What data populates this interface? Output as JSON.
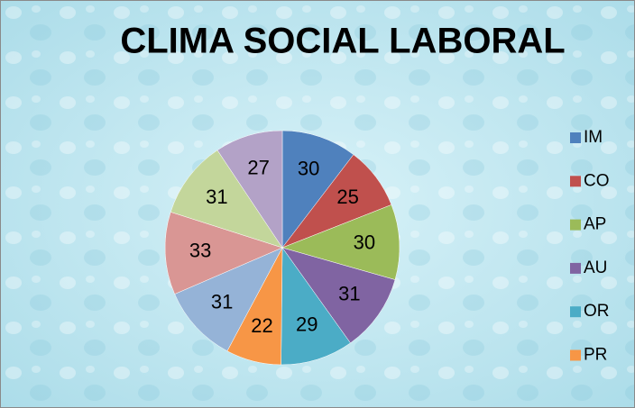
{
  "chart_data": {
    "type": "pie",
    "title": "CLIMA SOCIAL LABORAL",
    "categories": [
      "IM",
      "CO",
      "AP",
      "AU",
      "OR",
      "PR",
      null,
      null,
      null,
      null
    ],
    "values": [
      30,
      25,
      30,
      31,
      29,
      22,
      31,
      33,
      31,
      27
    ],
    "colors": [
      "#4f81bd",
      "#c0504d",
      "#9bbb59",
      "#8064a2",
      "#4bacc6",
      "#f79646",
      "#95b3d7",
      "#d99694",
      "#c3d69b",
      "#b3a2c7"
    ],
    "legend": "right"
  }
}
